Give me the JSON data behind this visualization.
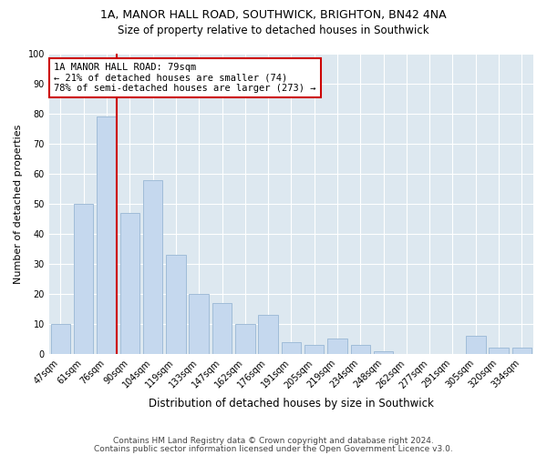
{
  "title1": "1A, MANOR HALL ROAD, SOUTHWICK, BRIGHTON, BN42 4NA",
  "title2": "Size of property relative to detached houses in Southwick",
  "xlabel": "Distribution of detached houses by size in Southwick",
  "ylabel": "Number of detached properties",
  "categories": [
    "47sqm",
    "61sqm",
    "76sqm",
    "90sqm",
    "104sqm",
    "119sqm",
    "133sqm",
    "147sqm",
    "162sqm",
    "176sqm",
    "191sqm",
    "205sqm",
    "219sqm",
    "234sqm",
    "248sqm",
    "262sqm",
    "277sqm",
    "291sqm",
    "305sqm",
    "320sqm",
    "334sqm"
  ],
  "values": [
    10,
    50,
    79,
    47,
    58,
    33,
    20,
    17,
    10,
    13,
    4,
    3,
    5,
    3,
    1,
    0,
    0,
    0,
    6,
    2,
    2
  ],
  "bar_color": "#c5d8ee",
  "bar_edge_color": "#a0bcd8",
  "highlight_bar_index": 2,
  "annotation_text": "1A MANOR HALL ROAD: 79sqm\n← 21% of detached houses are smaller (74)\n78% of semi-detached houses are larger (273) →",
  "annotation_box_color": "#ffffff",
  "annotation_box_edge": "#cc0000",
  "annotation_line_color": "#cc0000",
  "ylim": [
    0,
    100
  ],
  "yticks": [
    0,
    10,
    20,
    30,
    40,
    50,
    60,
    70,
    80,
    90,
    100
  ],
  "grid_color": "#ffffff",
  "background_color": "#dde8f0",
  "footer1": "Contains HM Land Registry data © Crown copyright and database right 2024.",
  "footer2": "Contains public sector information licensed under the Open Government Licence v3.0.",
  "title1_fontsize": 9,
  "title2_fontsize": 8.5,
  "xlabel_fontsize": 8.5,
  "ylabel_fontsize": 8,
  "tick_fontsize": 7,
  "annotation_fontsize": 7.5,
  "footer_fontsize": 6.5
}
